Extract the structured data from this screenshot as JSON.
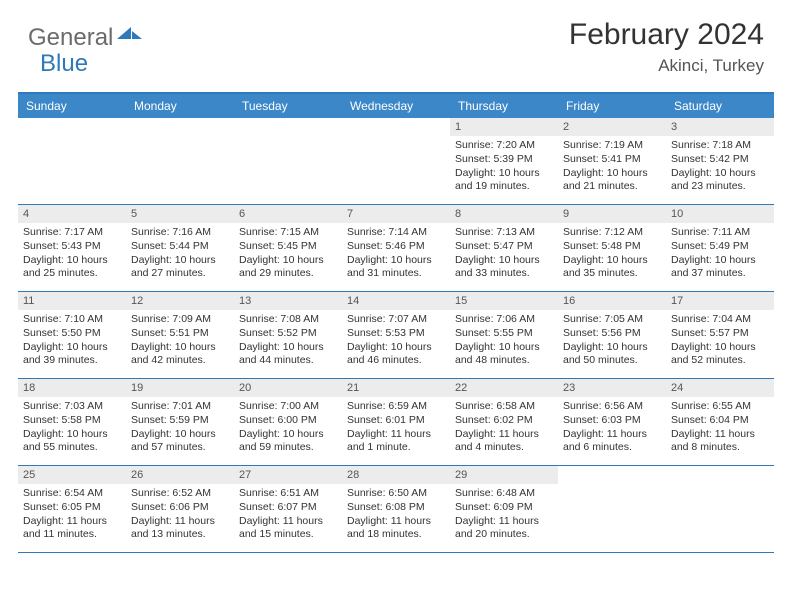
{
  "logo": {
    "text1": "General",
    "text2": "Blue"
  },
  "header": {
    "title": "February 2024",
    "location": "Akinci, Turkey"
  },
  "colors": {
    "accent": "#3b87c8",
    "border": "#2f78b9",
    "daynum_bg": "#ececec",
    "text": "#333333"
  },
  "weekdays": [
    "Sunday",
    "Monday",
    "Tuesday",
    "Wednesday",
    "Thursday",
    "Friday",
    "Saturday"
  ],
  "weeks": [
    [
      {
        "empty": true
      },
      {
        "empty": true
      },
      {
        "empty": true
      },
      {
        "empty": true
      },
      {
        "n": "1",
        "sunrise": "7:20 AM",
        "sunset": "5:39 PM",
        "daylight": "10 hours and 19 minutes."
      },
      {
        "n": "2",
        "sunrise": "7:19 AM",
        "sunset": "5:41 PM",
        "daylight": "10 hours and 21 minutes."
      },
      {
        "n": "3",
        "sunrise": "7:18 AM",
        "sunset": "5:42 PM",
        "daylight": "10 hours and 23 minutes."
      }
    ],
    [
      {
        "n": "4",
        "sunrise": "7:17 AM",
        "sunset": "5:43 PM",
        "daylight": "10 hours and 25 minutes."
      },
      {
        "n": "5",
        "sunrise": "7:16 AM",
        "sunset": "5:44 PM",
        "daylight": "10 hours and 27 minutes."
      },
      {
        "n": "6",
        "sunrise": "7:15 AM",
        "sunset": "5:45 PM",
        "daylight": "10 hours and 29 minutes."
      },
      {
        "n": "7",
        "sunrise": "7:14 AM",
        "sunset": "5:46 PM",
        "daylight": "10 hours and 31 minutes."
      },
      {
        "n": "8",
        "sunrise": "7:13 AM",
        "sunset": "5:47 PM",
        "daylight": "10 hours and 33 minutes."
      },
      {
        "n": "9",
        "sunrise": "7:12 AM",
        "sunset": "5:48 PM",
        "daylight": "10 hours and 35 minutes."
      },
      {
        "n": "10",
        "sunrise": "7:11 AM",
        "sunset": "5:49 PM",
        "daylight": "10 hours and 37 minutes."
      }
    ],
    [
      {
        "n": "11",
        "sunrise": "7:10 AM",
        "sunset": "5:50 PM",
        "daylight": "10 hours and 39 minutes."
      },
      {
        "n": "12",
        "sunrise": "7:09 AM",
        "sunset": "5:51 PM",
        "daylight": "10 hours and 42 minutes."
      },
      {
        "n": "13",
        "sunrise": "7:08 AM",
        "sunset": "5:52 PM",
        "daylight": "10 hours and 44 minutes."
      },
      {
        "n": "14",
        "sunrise": "7:07 AM",
        "sunset": "5:53 PM",
        "daylight": "10 hours and 46 minutes."
      },
      {
        "n": "15",
        "sunrise": "7:06 AM",
        "sunset": "5:55 PM",
        "daylight": "10 hours and 48 minutes."
      },
      {
        "n": "16",
        "sunrise": "7:05 AM",
        "sunset": "5:56 PM",
        "daylight": "10 hours and 50 minutes."
      },
      {
        "n": "17",
        "sunrise": "7:04 AM",
        "sunset": "5:57 PM",
        "daylight": "10 hours and 52 minutes."
      }
    ],
    [
      {
        "n": "18",
        "sunrise": "7:03 AM",
        "sunset": "5:58 PM",
        "daylight": "10 hours and 55 minutes."
      },
      {
        "n": "19",
        "sunrise": "7:01 AM",
        "sunset": "5:59 PM",
        "daylight": "10 hours and 57 minutes."
      },
      {
        "n": "20",
        "sunrise": "7:00 AM",
        "sunset": "6:00 PM",
        "daylight": "10 hours and 59 minutes."
      },
      {
        "n": "21",
        "sunrise": "6:59 AM",
        "sunset": "6:01 PM",
        "daylight": "11 hours and 1 minute."
      },
      {
        "n": "22",
        "sunrise": "6:58 AM",
        "sunset": "6:02 PM",
        "daylight": "11 hours and 4 minutes."
      },
      {
        "n": "23",
        "sunrise": "6:56 AM",
        "sunset": "6:03 PM",
        "daylight": "11 hours and 6 minutes."
      },
      {
        "n": "24",
        "sunrise": "6:55 AM",
        "sunset": "6:04 PM",
        "daylight": "11 hours and 8 minutes."
      }
    ],
    [
      {
        "n": "25",
        "sunrise": "6:54 AM",
        "sunset": "6:05 PM",
        "daylight": "11 hours and 11 minutes."
      },
      {
        "n": "26",
        "sunrise": "6:52 AM",
        "sunset": "6:06 PM",
        "daylight": "11 hours and 13 minutes."
      },
      {
        "n": "27",
        "sunrise": "6:51 AM",
        "sunset": "6:07 PM",
        "daylight": "11 hours and 15 minutes."
      },
      {
        "n": "28",
        "sunrise": "6:50 AM",
        "sunset": "6:08 PM",
        "daylight": "11 hours and 18 minutes."
      },
      {
        "n": "29",
        "sunrise": "6:48 AM",
        "sunset": "6:09 PM",
        "daylight": "11 hours and 20 minutes."
      },
      {
        "empty": true
      },
      {
        "empty": true
      }
    ]
  ],
  "labels": {
    "sunrise": "Sunrise:",
    "sunset": "Sunset:",
    "daylight": "Daylight:"
  }
}
